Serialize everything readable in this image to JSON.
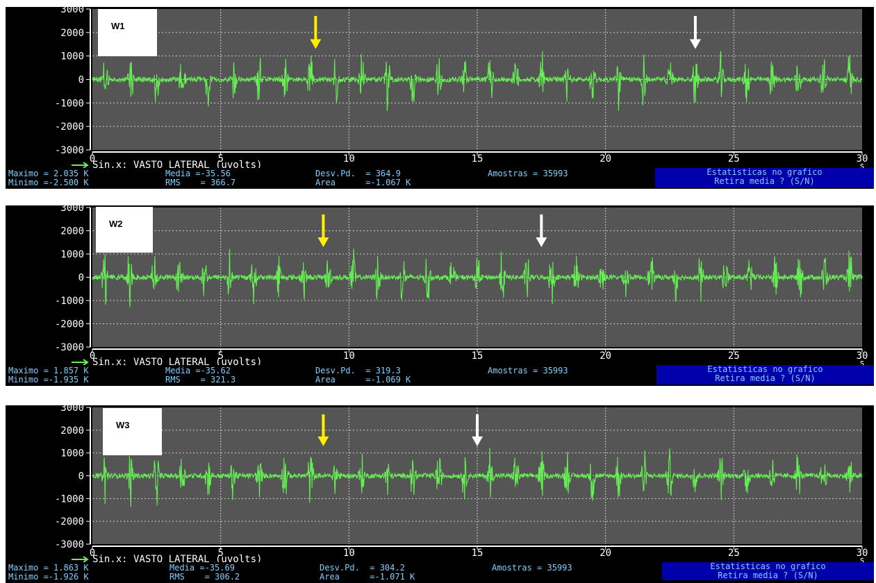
{
  "colors": {
    "plot_bg": "#555555",
    "signal": "#66ee55",
    "grid": "#cfcfcf",
    "text": "#80d0ff",
    "stat_box": "#0000aa",
    "arrow_yellow": "#ffee00",
    "arrow_white": "#ffffff"
  },
  "panels": [
    {
      "label": "W1",
      "legend": "Sin.x: VASTO LATERAL (uvolts)",
      "stats": {
        "maximo": "Maximo = 2.035 K",
        "minimo": "Minimo =-2.500 K",
        "media": "Media =-35.56",
        "rms": "RMS    = 366.7",
        "desv": "Desv.Pd.  = 364.9",
        "area": "Area      =-1.067 K",
        "amostras": "Amostras = 35993"
      },
      "box": {
        "line1": "Estatisticas no grafico",
        "line2": "Retira media ? (S/N)"
      }
    },
    {
      "label": "W2",
      "legend": "Sin.x: VASTO LATERAL (uvolts)",
      "stats": {
        "maximo": "Maximo = 1.857 K",
        "minimo": "Minimo =-1.935 K",
        "media": "Media =-35.62",
        "rms": "RMS    = 321.3",
        "desv": "Desv.Pd.  = 319.3",
        "area": "Area      =-1.069 K",
        "amostras": "Amostras = 35993"
      },
      "box": {
        "line1": "Estatisticas no grafico",
        "line2": "Retira media ? (S/N)"
      }
    },
    {
      "label": "W3",
      "legend": "Sin.x: VASTO LATERAL (uvolts)",
      "stats": {
        "maximo": "Maximo = 1.863 K",
        "minimo": "Minimo =-1.926 K",
        "media": "Media =-35.69",
        "rms": "RMS    = 306.2",
        "desv": "Desv.Pd.  = 304.2",
        "area": "Area      =-1.071 K",
        "amostras": "Amostras = 35993"
      },
      "box": {
        "line1": "Estatisticas no grafico",
        "line2": "Retira media ? (S/N)"
      }
    }
  ],
  "chart_data": [
    {
      "type": "line",
      "title": "",
      "xlabel": "s",
      "ylabel": "",
      "xlim": [
        0,
        30
      ],
      "ylim": [
        -3000,
        3000
      ],
      "x_ticks": [
        "0",
        "5",
        "10",
        "15",
        "20",
        "25",
        "30"
      ],
      "y_ticks": [
        "3000",
        "2000",
        "1000",
        "0",
        "-1000",
        "-2000",
        "-3000"
      ],
      "series": [
        {
          "name": "Sin.x: VASTO LATERAL (uvolts)",
          "bursts": 30,
          "max": 2035,
          "min": -2500
        }
      ],
      "annotations": [
        {
          "color": "yellow",
          "x": 8.7
        },
        {
          "color": "white",
          "x": 23.5
        }
      ]
    },
    {
      "type": "line",
      "title": "",
      "xlabel": "s",
      "ylabel": "",
      "xlim": [
        0,
        30
      ],
      "ylim": [
        -3000,
        3000
      ],
      "x_ticks": [
        "0",
        "5",
        "10",
        "15",
        "20",
        "25",
        "30"
      ],
      "y_ticks": [
        "3000",
        "2000",
        "1000",
        "0",
        "-1000",
        "-2000",
        "-3000"
      ],
      "series": [
        {
          "name": "Sin.x: VASTO LATERAL (uvolts)",
          "bursts": 31,
          "max": 1857,
          "min": -1935
        }
      ],
      "annotations": [
        {
          "color": "yellow",
          "x": 9.0
        },
        {
          "color": "white",
          "x": 17.5
        }
      ]
    },
    {
      "type": "line",
      "title": "",
      "xlabel": "s",
      "ylabel": "",
      "xlim": [
        0,
        30
      ],
      "ylim": [
        -3000,
        3000
      ],
      "x_ticks": [
        "0",
        "5",
        "10",
        "15",
        "20",
        "25",
        "30"
      ],
      "y_ticks": [
        "3000",
        "2000",
        "1000",
        "0",
        "-1000",
        "-2000",
        "-3000"
      ],
      "series": [
        {
          "name": "Sin.x: VASTO LATERAL (uvolts)",
          "bursts": 30,
          "max": 1863,
          "min": -1926
        }
      ],
      "annotations": [
        {
          "color": "yellow",
          "x": 9.0
        },
        {
          "color": "white",
          "x": 15.0
        }
      ]
    }
  ]
}
